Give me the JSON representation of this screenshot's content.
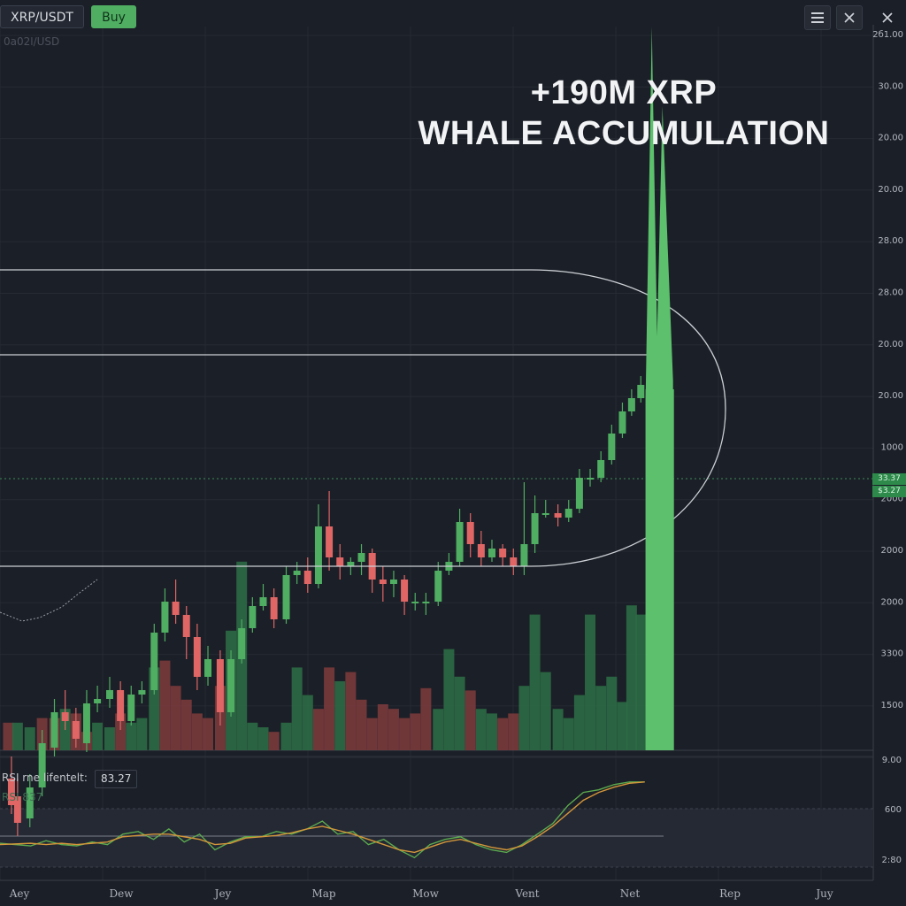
{
  "toolbar": {
    "symbol": "XRP/USDT",
    "buy_label": "Buy",
    "menu_icon": "hamburger-menu-icon",
    "close_icon": "close-icon"
  },
  "subtitle": "0a0ا2/USD",
  "headline": {
    "line1": "+190M XRP",
    "line2": "WHALE ACCUMULATION"
  },
  "price_tags": [
    "33.37",
    "$3.27"
  ],
  "rsi": {
    "label": "RSI rne lifentelt:",
    "value": "83.27",
    "sub_label": "RSI 837"
  },
  "colors": {
    "up": "#4fae62",
    "down": "#e06666",
    "volume_up": "#2c6a45",
    "volume_down": "#7a3a3c",
    "spike": "#5cc06c",
    "rsi_green": "#5caa4e",
    "rsi_orange": "#d4963a"
  },
  "chart_data": {
    "type": "candlestick",
    "price_axis_ticks": [
      "2б1.00",
      "30.00",
      "20.00",
      "20.00",
      "28.00",
      "28.00",
      "20.00",
      "20.00",
      "1000",
      "2000",
      "2000",
      "2000",
      "3300",
      "1500"
    ],
    "rsi_axis_ticks": [
      "9.00",
      "600",
      "2:80"
    ],
    "x_labels": [
      "Aey",
      "Dew",
      "Jey",
      "Map",
      "Mow",
      "Vent",
      "Net",
      "Rep",
      "Juy"
    ],
    "candles": [
      [
        0.4,
        1.4,
        1.34,
        1.45,
        1.32
      ],
      [
        0.8,
        1.36,
        1.3,
        1.4,
        1.27
      ],
      [
        1.6,
        1.31,
        1.38,
        1.41,
        1.29
      ],
      [
        2.4,
        1.38,
        1.48,
        1.51,
        1.36
      ],
      [
        3.2,
        1.47,
        1.55,
        1.58,
        1.45
      ],
      [
        3.9,
        1.55,
        1.53,
        1.6,
        1.51
      ],
      [
        4.6,
        1.53,
        1.49,
        1.56,
        1.47
      ],
      [
        5.3,
        1.48,
        1.57,
        1.6,
        1.46
      ],
      [
        6.0,
        1.57,
        1.58,
        1.61,
        1.55
      ],
      [
        6.8,
        1.58,
        1.6,
        1.63,
        1.56
      ],
      [
        7.5,
        1.6,
        1.53,
        1.62,
        1.51
      ],
      [
        8.2,
        1.53,
        1.59,
        1.61,
        1.52
      ],
      [
        8.9,
        1.59,
        1.6,
        1.62,
        1.57
      ],
      [
        9.7,
        1.6,
        1.73,
        1.75,
        1.59
      ],
      [
        10.4,
        1.73,
        1.8,
        1.83,
        1.71
      ],
      [
        11.1,
        1.8,
        1.77,
        1.85,
        1.75
      ],
      [
        11.8,
        1.77,
        1.72,
        1.79,
        1.67
      ],
      [
        12.5,
        1.72,
        1.63,
        1.75,
        1.6
      ],
      [
        13.2,
        1.63,
        1.67,
        1.7,
        1.61
      ],
      [
        14.0,
        1.67,
        1.55,
        1.69,
        1.52
      ],
      [
        14.7,
        1.55,
        1.67,
        1.69,
        1.54
      ],
      [
        15.4,
        1.67,
        1.74,
        1.76,
        1.66
      ],
      [
        16.1,
        1.74,
        1.79,
        1.81,
        1.73
      ],
      [
        16.8,
        1.79,
        1.81,
        1.84,
        1.78
      ],
      [
        17.5,
        1.81,
        1.76,
        1.83,
        1.74
      ],
      [
        18.3,
        1.76,
        1.86,
        1.88,
        1.75
      ],
      [
        19.0,
        1.86,
        1.87,
        1.89,
        1.84
      ],
      [
        19.7,
        1.87,
        1.84,
        1.9,
        1.82
      ],
      [
        20.4,
        1.84,
        1.97,
        2.02,
        1.83
      ],
      [
        21.1,
        1.97,
        1.9,
        2.05,
        1.87
      ],
      [
        21.8,
        1.9,
        1.88,
        1.93,
        1.85
      ],
      [
        22.5,
        1.88,
        1.89,
        1.9,
        1.86
      ],
      [
        23.2,
        1.89,
        1.91,
        1.93,
        1.86
      ],
      [
        23.9,
        1.91,
        1.85,
        1.92,
        1.82
      ],
      [
        24.6,
        1.85,
        1.84,
        1.88,
        1.8
      ],
      [
        25.3,
        1.84,
        1.85,
        1.87,
        1.81
      ],
      [
        26.0,
        1.85,
        1.8,
        1.86,
        1.77
      ],
      [
        26.7,
        1.8,
        1.8,
        1.82,
        1.78
      ],
      [
        27.4,
        1.8,
        1.8,
        1.82,
        1.77
      ],
      [
        28.2,
        1.8,
        1.87,
        1.89,
        1.79
      ],
      [
        28.9,
        1.87,
        1.89,
        1.91,
        1.86
      ],
      [
        29.6,
        1.89,
        1.98,
        2.01,
        1.88
      ],
      [
        30.3,
        1.98,
        1.93,
        2.0,
        1.9
      ],
      [
        31.0,
        1.93,
        1.9,
        1.96,
        1.88
      ],
      [
        31.7,
        1.9,
        1.92,
        1.94,
        1.89
      ],
      [
        32.4,
        1.92,
        1.9,
        1.93,
        1.88
      ],
      [
        33.1,
        1.9,
        1.88,
        1.92,
        1.86
      ],
      [
        33.8,
        1.88,
        1.93,
        2.07,
        1.86
      ],
      [
        34.5,
        1.93,
        2.0,
        2.04,
        1.91
      ],
      [
        35.2,
        2.0,
        2.0,
        2.03,
        1.99
      ],
      [
        36.0,
        2.0,
        1.99,
        2.02,
        1.97
      ],
      [
        36.7,
        1.99,
        2.01,
        2.03,
        1.98
      ],
      [
        37.4,
        2.01,
        2.08,
        2.1,
        2.0
      ],
      [
        38.1,
        2.08,
        2.08,
        2.1,
        2.06
      ],
      [
        38.8,
        2.08,
        2.12,
        2.14,
        2.07
      ],
      [
        39.5,
        2.12,
        2.18,
        2.2,
        2.11
      ],
      [
        40.2,
        2.18,
        2.23,
        2.25,
        2.17
      ],
      [
        40.8,
        2.23,
        2.26,
        2.28,
        2.22
      ],
      [
        41.4,
        2.26,
        2.29,
        2.31,
        2.25
      ]
    ],
    "spike": {
      "x": 42.0,
      "start": 2.26,
      "peak": 3.1,
      "second_peak": 2.92
    },
    "volume": [
      [
        0.2,
        0.12,
        0
      ],
      [
        0.8,
        0.12,
        1
      ],
      [
        1.6,
        0.1,
        1
      ],
      [
        2.4,
        0.14,
        0
      ],
      [
        3.2,
        0.14,
        0
      ],
      [
        3.9,
        0.18,
        1
      ],
      [
        4.6,
        0.16,
        0
      ],
      [
        5.3,
        0.08,
        0
      ],
      [
        6.0,
        0.12,
        1
      ],
      [
        6.8,
        0.1,
        1
      ],
      [
        7.5,
        0.16,
        0
      ],
      [
        8.2,
        0.12,
        1
      ],
      [
        8.9,
        0.14,
        1
      ],
      [
        9.7,
        0.36,
        1
      ],
      [
        10.4,
        0.39,
        0
      ],
      [
        11.1,
        0.28,
        0
      ],
      [
        11.8,
        0.22,
        0
      ],
      [
        12.5,
        0.16,
        0
      ],
      [
        13.2,
        0.14,
        0
      ],
      [
        14.0,
        0.28,
        0
      ],
      [
        14.7,
        0.52,
        1
      ],
      [
        15.4,
        0.82,
        1
      ],
      [
        16.1,
        0.12,
        1
      ],
      [
        16.8,
        0.1,
        1
      ],
      [
        17.5,
        0.08,
        0
      ],
      [
        18.3,
        0.12,
        1
      ],
      [
        19.0,
        0.36,
        1
      ],
      [
        19.7,
        0.24,
        1
      ],
      [
        20.4,
        0.18,
        0
      ],
      [
        21.1,
        0.36,
        0
      ],
      [
        21.8,
        0.3,
        1
      ],
      [
        22.5,
        0.34,
        0
      ],
      [
        23.2,
        0.22,
        0
      ],
      [
        23.9,
        0.14,
        0
      ],
      [
        24.6,
        0.2,
        0
      ],
      [
        25.3,
        0.18,
        0
      ],
      [
        26.0,
        0.14,
        0
      ],
      [
        26.7,
        0.16,
        0
      ],
      [
        27.4,
        0.27,
        0
      ],
      [
        28.2,
        0.18,
        1
      ],
      [
        28.9,
        0.44,
        1
      ],
      [
        29.6,
        0.32,
        1
      ],
      [
        30.3,
        0.26,
        0
      ],
      [
        31.0,
        0.18,
        1
      ],
      [
        31.7,
        0.16,
        1
      ],
      [
        32.4,
        0.14,
        0
      ],
      [
        33.1,
        0.16,
        0
      ],
      [
        33.8,
        0.28,
        1
      ],
      [
        34.5,
        0.59,
        1
      ],
      [
        35.2,
        0.34,
        1
      ],
      [
        36.0,
        0.18,
        1
      ],
      [
        36.7,
        0.14,
        1
      ],
      [
        37.4,
        0.24,
        1
      ],
      [
        38.1,
        0.59,
        1
      ],
      [
        38.8,
        0.28,
        1
      ],
      [
        39.5,
        0.32,
        1
      ],
      [
        40.2,
        0.21,
        1
      ],
      [
        40.8,
        0.63,
        1
      ],
      [
        41.4,
        0.59,
        1
      ]
    ],
    "rsi_green": [
      [
        0,
        45
      ],
      [
        2,
        43
      ],
      [
        3,
        47
      ],
      [
        4,
        44
      ],
      [
        5,
        43
      ],
      [
        6,
        46
      ],
      [
        7,
        44
      ],
      [
        8,
        52
      ],
      [
        9,
        54
      ],
      [
        10,
        48
      ],
      [
        11,
        56
      ],
      [
        12,
        46
      ],
      [
        13,
        52
      ],
      [
        14,
        40
      ],
      [
        15,
        46
      ],
      [
        16,
        50
      ],
      [
        17,
        50
      ],
      [
        18,
        54
      ],
      [
        19,
        52
      ],
      [
        20,
        56
      ],
      [
        21,
        62
      ],
      [
        22,
        52
      ],
      [
        23,
        54
      ],
      [
        24,
        44
      ],
      [
        25,
        48
      ],
      [
        26,
        40
      ],
      [
        27,
        34
      ],
      [
        28,
        44
      ],
      [
        29,
        48
      ],
      [
        30,
        50
      ],
      [
        31,
        44
      ],
      [
        32,
        40
      ],
      [
        33,
        38
      ],
      [
        34,
        44
      ],
      [
        35,
        52
      ],
      [
        36,
        60
      ],
      [
        37,
        74
      ],
      [
        38,
        84
      ],
      [
        39,
        86
      ],
      [
        40,
        90
      ],
      [
        41,
        92
      ],
      [
        42,
        92
      ]
    ],
    "rsi_orange": [
      [
        0,
        44
      ],
      [
        2,
        45
      ],
      [
        3,
        44
      ],
      [
        4,
        45
      ],
      [
        5,
        44
      ],
      [
        6,
        45
      ],
      [
        7,
        46
      ],
      [
        8,
        50
      ],
      [
        9,
        51
      ],
      [
        10,
        52
      ],
      [
        11,
        52
      ],
      [
        12,
        50
      ],
      [
        13,
        48
      ],
      [
        14,
        44
      ],
      [
        15,
        45
      ],
      [
        16,
        49
      ],
      [
        17,
        50
      ],
      [
        18,
        51
      ],
      [
        19,
        53
      ],
      [
        20,
        56
      ],
      [
        21,
        58
      ],
      [
        22,
        55
      ],
      [
        23,
        52
      ],
      [
        24,
        48
      ],
      [
        25,
        44
      ],
      [
        26,
        40
      ],
      [
        27,
        38
      ],
      [
        28,
        42
      ],
      [
        29,
        46
      ],
      [
        30,
        48
      ],
      [
        31,
        45
      ],
      [
        32,
        42
      ],
      [
        33,
        40
      ],
      [
        34,
        43
      ],
      [
        35,
        50
      ],
      [
        36,
        58
      ],
      [
        37,
        68
      ],
      [
        38,
        78
      ],
      [
        39,
        84
      ],
      [
        40,
        88
      ],
      [
        41,
        91
      ],
      [
        42,
        92
      ]
    ],
    "rsi_overbought": 70,
    "rsi_oversold": 30,
    "rsi_mid": 50
  }
}
